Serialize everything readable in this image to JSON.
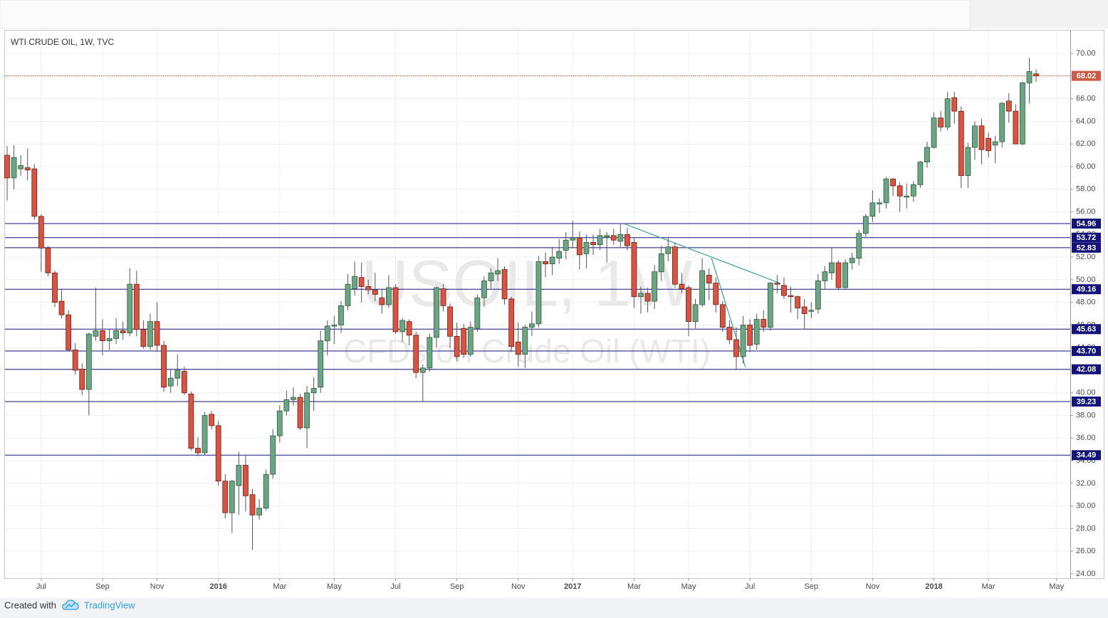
{
  "chart_data": {
    "type": "candlestick",
    "title": "WTI CRUDE OIL, 1W, TVC",
    "watermark": {
      "symbol": "USOIL, 1W",
      "description": "CFDs on Crude Oil (WTI)"
    },
    "categories": [
      null,
      null,
      null,
      null,
      null,
      "Jul",
      null,
      null,
      null,
      null,
      null,
      null,
      null,
      null,
      "Sep",
      null,
      null,
      null,
      null,
      null,
      null,
      null,
      "Nov",
      null,
      null,
      null,
      null,
      null,
      null,
      null,
      null,
      "2016",
      null,
      null,
      null,
      null,
      null,
      null,
      null,
      null,
      "Mar",
      null,
      null,
      null,
      null,
      null,
      null,
      null,
      "May",
      null,
      null,
      null,
      null,
      null,
      null,
      null,
      null,
      "Jul",
      null,
      null,
      null,
      null,
      null,
      null,
      null,
      null,
      "Sep",
      null,
      null,
      null,
      null,
      null,
      null,
      null,
      null,
      "Nov",
      null,
      null,
      null,
      null,
      null,
      null,
      null,
      "2017",
      null,
      null,
      null,
      null,
      null,
      null,
      null,
      null,
      "Mar",
      null,
      null,
      null,
      null,
      null,
      null,
      null,
      "May",
      null,
      null,
      null,
      null,
      null,
      null,
      null,
      null,
      "Jul",
      null,
      null,
      null,
      null,
      null,
      null,
      null,
      null,
      "Sep",
      null,
      null,
      null,
      null,
      null,
      null,
      null,
      null,
      "Nov",
      null,
      null,
      null,
      null,
      null,
      null,
      null,
      null,
      "2018",
      null,
      null,
      null,
      null,
      null,
      null,
      null,
      "Mar",
      null,
      null,
      null,
      null,
      null,
      null,
      null,
      null,
      null,
      "May"
    ],
    "open": [
      61.0,
      59.0,
      59.8,
      59.9,
      59.8,
      55.6,
      52.8,
      50.6,
      48.1,
      46.9,
      43.8,
      42.1,
      40.3,
      45.0,
      45.5,
      44.6,
      44.8,
      45.5,
      45.3,
      49.6,
      45.6,
      44.1,
      46.3,
      44.2,
      40.6,
      41.3,
      41.9,
      39.9,
      35.1,
      34.7,
      38.1,
      37.1,
      32.2,
      29.4,
      31.8,
      33.6,
      31.0,
      29.2,
      29.8,
      32.8,
      36.2,
      38.4,
      39.4,
      39.6,
      36.9,
      40.0,
      40.5,
      44.6,
      45.9,
      46.0,
      47.7,
      49.2,
      50.2,
      49.4,
      49.1,
      48.4,
      47.8,
      49.3,
      45.4,
      46.3,
      45.1,
      41.8,
      42.2,
      44.9,
      49.2,
      47.6,
      45.0,
      45.7,
      43.4,
      45.7,
      48.4,
      49.9,
      50.5,
      50.9,
      48.3,
      44.5,
      43.4,
      45.8,
      46.1,
      51.6,
      51.4,
      51.9,
      52.6,
      53.5,
      53.7,
      52.3,
      53.3,
      53.1,
      53.8,
      53.9,
      53.4,
      54.0,
      53.3,
      48.5,
      48.8,
      48.1,
      50.7,
      52.3,
      52.9,
      49.6,
      49.3,
      46.3,
      47.8,
      50.4,
      49.7,
      47.8,
      45.8,
      44.7,
      43.2,
      46.0,
      44.3,
      46.5,
      45.8,
      49.7,
      49.5,
      48.6,
      48.5,
      47.6,
      47.2,
      47.4,
      49.9,
      50.6,
      51.5,
      49.3,
      51.5,
      51.9,
      54.1,
      55.6,
      56.7,
      56.8,
      58.9,
      58.3,
      57.3,
      57.4,
      58.4,
      60.4,
      61.7,
      64.3,
      63.5,
      66.1,
      64.9,
      59.2,
      61.7,
      63.6,
      62.5,
      61.9,
      62.2,
      65.8,
      64.9,
      62.0,
      67.4,
      68.2,
      null,
      null,
      null
    ],
    "high": [
      61.8,
      61.9,
      61.0,
      61.6,
      60.2,
      55.8,
      53.0,
      50.8,
      49.2,
      47.3,
      44.4,
      42.6,
      45.3,
      49.3,
      46.5,
      45.6,
      46.6,
      46.3,
      51.0,
      50.8,
      46.4,
      47.0,
      48.0,
      44.6,
      42.1,
      43.4,
      42.3,
      40.1,
      36.1,
      38.3,
      38.4,
      37.5,
      32.8,
      32.3,
      34.8,
      34.5,
      31.5,
      30.6,
      33.2,
      36.8,
      38.9,
      40.2,
      40.5,
      39.9,
      40.6,
      41.4,
      45.5,
      46.4,
      46.8,
      48.1,
      50.5,
      51.6,
      51.5,
      50.0,
      50.6,
      49.2,
      50.4,
      49.6,
      46.6,
      46.5,
      45.4,
      42.5,
      45.2,
      49.4,
      49.6,
      47.9,
      46.2,
      46.1,
      46.3,
      48.7,
      50.3,
      51.0,
      51.9,
      51.2,
      48.5,
      46.2,
      46.0,
      47.2,
      52.1,
      52.4,
      52.9,
      53.6,
      54.2,
      55.2,
      54.3,
      54.0,
      54.0,
      54.5,
      54.2,
      54.5,
      54.9,
      54.6,
      53.7,
      49.4,
      49.3,
      51.3,
      53.0,
      53.7,
      53.3,
      50.6,
      49.5,
      48.3,
      51.9,
      51.0,
      50.2,
      48.1,
      46.4,
      45.8,
      46.8,
      46.5,
      47.0,
      47.3,
      49.8,
      50.4,
      50.2,
      49.4,
      48.6,
      48.3,
      48.0,
      50.5,
      51.2,
      52.8,
      51.7,
      51.8,
      52.4,
      54.4,
      55.8,
      57.9,
      57.2,
      59.1,
      59.0,
      58.6,
      58.5,
      58.7,
      60.5,
      62.2,
      64.8,
      64.9,
      66.6,
      66.6,
      65.3,
      62.1,
      64.0,
      64.2,
      63.0,
      62.7,
      65.7,
      66.5,
      65.5,
      67.5,
      69.6,
      68.6,
      null,
      null,
      null
    ],
    "low": [
      57.0,
      58.0,
      59.2,
      58.8,
      55.3,
      50.7,
      50.3,
      47.6,
      46.6,
      43.7,
      41.6,
      39.8,
      38.0,
      44.6,
      43.3,
      43.8,
      44.3,
      44.7,
      45.0,
      45.0,
      43.9,
      43.8,
      43.6,
      40.1,
      40.0,
      40.6,
      39.8,
      34.9,
      34.4,
      34.5,
      36.8,
      31.8,
      28.9,
      27.6,
      29.2,
      29.5,
      26.1,
      28.8,
      29.6,
      32.4,
      35.6,
      38.0,
      38.9,
      36.7,
      35.1,
      38.4,
      40.0,
      43.3,
      44.3,
      45.3,
      47.3,
      48.6,
      48.0,
      48.7,
      48.1,
      47.0,
      47.5,
      45.2,
      44.5,
      44.2,
      41.3,
      39.2,
      41.9,
      44.0,
      47.2,
      44.0,
      42.8,
      43.1,
      43.2,
      45.4,
      47.6,
      49.2,
      49.9,
      47.8,
      43.6,
      42.3,
      42.2,
      45.0,
      45.8,
      50.2,
      50.4,
      51.4,
      51.8,
      52.8,
      50.9,
      51.0,
      52.2,
      52.6,
      51.5,
      53.1,
      52.9,
      52.6,
      47.5,
      47.0,
      47.1,
      47.4,
      49.9,
      51.6,
      49.3,
      48.8,
      45.0,
      45.7,
      47.6,
      48.2,
      47.1,
      45.4,
      44.3,
      42.1,
      42.6,
      43.6,
      43.8,
      45.4,
      45.5,
      48.8,
      48.3,
      47.1,
      46.5,
      45.6,
      46.6,
      47.0,
      49.1,
      50.0,
      49.1,
      49.2,
      50.9,
      51.3,
      53.8,
      55.1,
      55.9,
      56.3,
      57.4,
      56.0,
      56.3,
      56.9,
      58.1,
      59.9,
      61.6,
      63.1,
      63.2,
      63.8,
      58.1,
      58.1,
      60.6,
      60.2,
      60.8,
      60.3,
      61.7,
      63.9,
      62.0,
      61.9,
      65.6,
      67.5,
      null,
      null,
      null
    ],
    "close": [
      59.0,
      60.8,
      60.1,
      59.7,
      55.6,
      52.8,
      50.6,
      48.0,
      46.9,
      43.8,
      42.0,
      40.3,
      45.2,
      45.5,
      44.6,
      44.8,
      45.5,
      45.3,
      49.6,
      45.6,
      44.1,
      46.3,
      44.2,
      40.5,
      41.3,
      42.0,
      40.0,
      35.1,
      34.7,
      38.0,
      37.1,
      32.2,
      29.4,
      32.2,
      33.6,
      30.9,
      29.2,
      29.8,
      32.8,
      36.2,
      38.4,
      39.4,
      39.6,
      36.9,
      40.0,
      40.4,
      44.6,
      45.9,
      46.0,
      47.7,
      49.6,
      50.3,
      49.4,
      49.1,
      48.7,
      47.8,
      49.3,
      45.4,
      46.4,
      45.1,
      41.8,
      42.2,
      44.9,
      49.3,
      47.7,
      45.0,
      43.2,
      43.4,
      45.8,
      48.4,
      49.9,
      50.6,
      50.8,
      48.3,
      44.1,
      43.4,
      45.8,
      46.1,
      51.6,
      51.4,
      52.0,
      52.5,
      53.5,
      53.7,
      52.2,
      53.3,
      53.1,
      53.9,
      53.9,
      53.5,
      54.0,
      53.0,
      48.5,
      48.8,
      48.1,
      50.7,
      52.3,
      52.9,
      49.6,
      49.2,
      46.3,
      47.8,
      50.8,
      49.7,
      47.8,
      45.8,
      44.7,
      43.2,
      46.0,
      44.2,
      46.5,
      45.8,
      49.7,
      49.6,
      48.6,
      48.5,
      47.5,
      47.0,
      47.3,
      49.9,
      50.7,
      51.5,
      49.3,
      51.5,
      51.9,
      54.1,
      55.6,
      56.8,
      56.8,
      58.9,
      58.3,
      57.4,
      57.4,
      58.4,
      60.4,
      61.7,
      64.3,
      63.5,
      66.0,
      64.9,
      59.2,
      61.7,
      63.6,
      61.5,
      61.4,
      62.2,
      65.6,
      64.9,
      62.0,
      67.4,
      68.4,
      68.02,
      null,
      null,
      null
    ],
    "up_color": "#6ba583",
    "down_color": "#d75442",
    "ylim": [
      23.62,
      72.02
    ],
    "yticks": [
      {
        "value": 24,
        "label": "24.00"
      },
      {
        "value": 26,
        "label": "26.00"
      },
      {
        "value": 28,
        "label": "28.00"
      },
      {
        "value": 30,
        "label": "30.00"
      },
      {
        "value": 32,
        "label": "32.00"
      },
      {
        "value": 34,
        "label": "34.00"
      },
      {
        "value": 36,
        "label": "36.00"
      },
      {
        "value": 38,
        "label": "38.00"
      },
      {
        "value": 40,
        "label": "40.00"
      },
      {
        "value": 42,
        "label": "42.00"
      },
      {
        "value": 44,
        "label": "44.00"
      },
      {
        "value": 46,
        "label": "46.00"
      },
      {
        "value": 48,
        "label": "48.00"
      },
      {
        "value": 50,
        "label": "50.00"
      },
      {
        "value": 52,
        "label": "52.00"
      },
      {
        "value": 54,
        "label": "54.00"
      },
      {
        "value": 56,
        "label": "56.00"
      },
      {
        "value": 58,
        "label": "58.00"
      },
      {
        "value": 60,
        "label": "60.00"
      },
      {
        "value": 62,
        "label": "62.00"
      },
      {
        "value": 64,
        "label": "64.00"
      },
      {
        "value": 66,
        "label": "66.00"
      },
      {
        "value": 68,
        "label": "68.00"
      },
      {
        "value": 70,
        "label": "70.00"
      }
    ],
    "grid": true,
    "levels": [
      54.96,
      53.72,
      52.83,
      49.16,
      45.63,
      {
        "value": 43.7,
        "label": "43.70"
      },
      42.08,
      39.23,
      34.49
    ],
    "level_color": "#13137a",
    "last_price": 68.02,
    "last_price_color": "#cf5a46"
  },
  "footer": {
    "created_with": "Created with",
    "brand": "TradingView"
  }
}
